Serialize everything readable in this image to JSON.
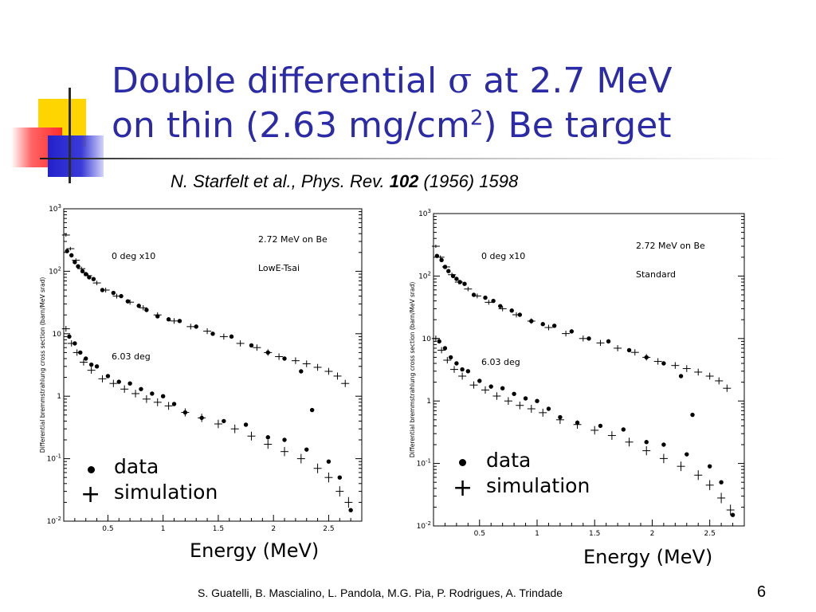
{
  "title": {
    "line1_before": "Double differential ",
    "sigma": "σ",
    "line1_after": " at 2.7 MeV",
    "line2_before": "on thin (2.63 mg/cm",
    "line2_sup": "2",
    "line2_after": ") Be target"
  },
  "citation": {
    "authors": "N. Starfelt et al., Phys. Rev. ",
    "volume": "102",
    "rest": " (1956) 1598"
  },
  "legend": {
    "data_label": "data",
    "simulation_label": "simulation"
  },
  "footer": {
    "authors": "S. Guatelli, B. Mascialino, L. Pandola, M.G. Pia, P. Rodrigues, A. Trindade",
    "page": "6"
  },
  "colors": {
    "title": "#2b2ba8",
    "deco_yellow": "#ffd500",
    "deco_red": "#ff2d2d",
    "deco_blue": "#2222cc"
  },
  "chart_data": [
    {
      "type": "scatter",
      "title": "",
      "annotations": [
        "2.72 MeV on Be",
        "LowE-Tsai",
        "0 deg x10",
        "6.03 deg"
      ],
      "xlabel": "Energy (MeV)",
      "ylabel": "Differential bremmstrahlung cross section (barn/MeV srad)",
      "xlim": [
        0.1,
        2.8
      ],
      "ylim": [
        0.01,
        1000
      ],
      "yscale": "log",
      "xticks": [
        "0.5",
        "1",
        "1.5",
        "2",
        "2.5"
      ],
      "yticks": [
        "10^-2",
        "10^-1",
        "1",
        "10",
        "10^2",
        "10^3"
      ],
      "series": [
        {
          "name": "data",
          "marker": "dot",
          "group": "0 deg x10",
          "x": [
            0.13,
            0.17,
            0.2,
            0.23,
            0.27,
            0.3,
            0.33,
            0.37,
            0.45,
            0.55,
            0.62,
            0.68,
            0.78,
            0.85,
            0.95,
            1.05,
            1.15,
            1.3,
            1.45,
            1.62,
            1.8,
            1.95,
            2.1,
            2.25,
            2.35
          ],
          "y": [
            210,
            180,
            140,
            120,
            100,
            90,
            80,
            75,
            50,
            45,
            40,
            33,
            28,
            24,
            19,
            17,
            16,
            13,
            10,
            9,
            6.5,
            5,
            4,
            2.5,
            0.6
          ]
        },
        {
          "name": "simulation",
          "marker": "cross",
          "group": "0 deg x10",
          "x": [
            0.12,
            0.16,
            0.21,
            0.26,
            0.32,
            0.4,
            0.48,
            0.58,
            0.7,
            0.82,
            0.95,
            1.1,
            1.25,
            1.4,
            1.55,
            1.7,
            1.85,
            1.95,
            2.05,
            2.2,
            2.3,
            2.4,
            2.5,
            2.58,
            2.65
          ],
          "y": [
            380,
            230,
            150,
            110,
            85,
            65,
            50,
            40,
            32,
            26,
            20,
            16,
            13,
            11,
            9,
            7,
            6,
            5,
            4.3,
            3.7,
            3.3,
            2.9,
            2.5,
            2.1,
            1.6
          ]
        },
        {
          "name": "data",
          "marker": "dot",
          "group": "6.03 deg",
          "x": [
            0.15,
            0.2,
            0.25,
            0.3,
            0.35,
            0.4,
            0.5,
            0.6,
            0.7,
            0.8,
            0.9,
            1.0,
            1.1,
            1.2,
            1.35,
            1.55,
            1.75,
            1.95,
            2.1,
            2.3,
            2.5,
            2.6,
            2.7
          ],
          "y": [
            9,
            7,
            5,
            4,
            3.2,
            3,
            2.1,
            1.7,
            1.6,
            1.3,
            1.1,
            1.0,
            0.75,
            0.55,
            0.45,
            0.4,
            0.35,
            0.22,
            0.2,
            0.14,
            0.09,
            0.05,
            0.015
          ]
        },
        {
          "name": "simulation",
          "marker": "cross",
          "group": "6.03 deg",
          "x": [
            0.12,
            0.17,
            0.22,
            0.28,
            0.35,
            0.45,
            0.55,
            0.65,
            0.75,
            0.85,
            0.95,
            1.05,
            1.2,
            1.35,
            1.5,
            1.65,
            1.8,
            1.95,
            2.1,
            2.25,
            2.4,
            2.5,
            2.6,
            2.68
          ],
          "y": [
            12,
            7,
            5,
            3.5,
            2.6,
            1.9,
            1.6,
            1.3,
            1.1,
            0.9,
            0.8,
            0.7,
            0.55,
            0.45,
            0.36,
            0.3,
            0.23,
            0.17,
            0.13,
            0.1,
            0.07,
            0.05,
            0.03,
            0.02
          ]
        }
      ]
    },
    {
      "type": "scatter",
      "title": "",
      "annotations": [
        "2.72 MeV on Be",
        "Standard",
        "0 deg x10",
        "6.03 deg"
      ],
      "xlabel": "Energy (MeV)",
      "ylabel": "Differential bremmstrahlung cross section (barn/MeV srad)",
      "xlim": [
        0.1,
        2.8
      ],
      "ylim": [
        0.01,
        1000
      ],
      "yscale": "log",
      "xticks": [
        "0.5",
        "1",
        "1.5",
        "2",
        "2.5"
      ],
      "yticks": [
        "10^-2",
        "10^-1",
        "1",
        "10",
        "10^2",
        "10^3"
      ],
      "series": [
        {
          "name": "data",
          "marker": "dot",
          "group": "0 deg x10",
          "x": [
            0.13,
            0.17,
            0.2,
            0.23,
            0.27,
            0.3,
            0.33,
            0.37,
            0.45,
            0.55,
            0.62,
            0.68,
            0.78,
            0.85,
            0.95,
            1.05,
            1.15,
            1.3,
            1.45,
            1.62,
            1.8,
            1.95,
            2.1,
            2.25,
            2.35
          ],
          "y": [
            210,
            180,
            140,
            120,
            100,
            90,
            80,
            75,
            50,
            45,
            40,
            33,
            28,
            24,
            19,
            17,
            16,
            13,
            10,
            9,
            6.5,
            5,
            4,
            2.5,
            0.6
          ]
        },
        {
          "name": "simulation",
          "marker": "cross",
          "group": "0 deg x10",
          "x": [
            0.12,
            0.16,
            0.21,
            0.26,
            0.32,
            0.4,
            0.48,
            0.58,
            0.7,
            0.82,
            0.95,
            1.1,
            1.25,
            1.4,
            1.55,
            1.7,
            1.85,
            1.95,
            2.05,
            2.2,
            2.3,
            2.4,
            2.5,
            2.58,
            2.65
          ],
          "y": [
            300,
            200,
            140,
            105,
            80,
            62,
            48,
            38,
            30,
            24,
            19,
            15,
            12,
            10,
            8.5,
            7,
            6,
            5,
            4.3,
            3.7,
            3.3,
            2.9,
            2.5,
            2.1,
            1.6
          ]
        },
        {
          "name": "data",
          "marker": "dot",
          "group": "6.03 deg",
          "x": [
            0.15,
            0.2,
            0.25,
            0.3,
            0.35,
            0.4,
            0.5,
            0.6,
            0.7,
            0.8,
            0.9,
            1.0,
            1.1,
            1.2,
            1.35,
            1.55,
            1.75,
            1.95,
            2.1,
            2.3,
            2.5,
            2.6,
            2.7
          ],
          "y": [
            9,
            7,
            5,
            4,
            3.2,
            3,
            2.1,
            1.7,
            1.6,
            1.3,
            1.1,
            1.0,
            0.75,
            0.55,
            0.45,
            0.4,
            0.35,
            0.22,
            0.2,
            0.14,
            0.09,
            0.05,
            0.015
          ]
        },
        {
          "name": "simulation",
          "marker": "cross",
          "group": "6.03 deg",
          "x": [
            0.12,
            0.17,
            0.22,
            0.28,
            0.35,
            0.45,
            0.55,
            0.65,
            0.75,
            0.85,
            0.95,
            1.05,
            1.2,
            1.35,
            1.5,
            1.65,
            1.8,
            1.95,
            2.1,
            2.25,
            2.4,
            2.5,
            2.6,
            2.68
          ],
          "y": [
            10,
            6.5,
            4.5,
            3.2,
            2.5,
            1.8,
            1.5,
            1.2,
            1.0,
            0.85,
            0.75,
            0.65,
            0.5,
            0.42,
            0.34,
            0.28,
            0.22,
            0.16,
            0.12,
            0.09,
            0.065,
            0.045,
            0.028,
            0.018
          ]
        }
      ]
    }
  ]
}
